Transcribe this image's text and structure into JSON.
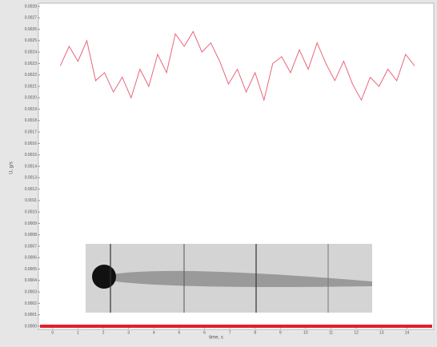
{
  "chart_data": {
    "type": "line",
    "x_label": "time, s",
    "y_label": "U, g/s",
    "x": [
      0.3,
      0.65,
      1,
      1.35,
      1.7,
      2.05,
      2.4,
      2.75,
      3.1,
      3.45,
      3.8,
      4.15,
      4.5,
      4.85,
      5.2,
      5.55,
      5.9,
      6.25,
      6.6,
      6.95,
      7.3,
      7.65,
      8,
      8.35,
      8.7,
      9.05,
      9.4,
      9.75,
      10.1,
      10.45,
      10.8,
      11.15,
      11.5,
      11.85,
      12.2,
      12.55,
      12.9,
      13.25,
      13.6,
      13.95,
      14.3
    ],
    "series": [
      {
        "color": "#e8667a",
        "values": [
          0.00228,
          0.00245,
          0.00232,
          0.0025,
          0.00215,
          0.00222,
          0.00205,
          0.00218,
          0.002,
          0.00225,
          0.0021,
          0.00238,
          0.00222,
          0.00256,
          0.00245,
          0.00258,
          0.0024,
          0.00248,
          0.00232,
          0.00212,
          0.00225,
          0.00205,
          0.00222,
          0.00198,
          0.0023,
          0.00236,
          0.00222,
          0.00242,
          0.00225,
          0.00248,
          0.0023,
          0.00215,
          0.00232,
          0.00212,
          0.00198,
          0.00218,
          0.0021,
          0.00225,
          0.00215,
          0.00238,
          0.00228
        ]
      }
    ],
    "xlim": [
      -0.5,
      15
    ],
    "xticks": [
      0,
      1,
      2,
      3,
      4,
      5,
      6,
      7,
      8,
      9,
      10,
      11,
      12,
      13,
      14
    ],
    "ylim": [
      0,
      0.0028
    ],
    "yticks": [
      {
        "value": 0,
        "label": "0.0000"
      },
      {
        "value": 0.0001,
        "label": "0.0001"
      },
      {
        "value": 0.0002,
        "label": "0.0002"
      },
      {
        "value": 0.0003,
        "label": "0.0003"
      },
      {
        "value": 0.0004,
        "label": "0.0004"
      },
      {
        "value": 0.0005,
        "label": "0.0005"
      },
      {
        "value": 0.0006,
        "label": "0.0006"
      },
      {
        "value": 0.0007,
        "label": "0.0007"
      },
      {
        "value": 0.0008,
        "label": "0.0008"
      },
      {
        "value": 0.0009,
        "label": "0.0009"
      },
      {
        "value": 0.001,
        "label": "0.0010"
      },
      {
        "value": 0.0011,
        "label": "0.0011"
      },
      {
        "value": 0.0012,
        "label": "0.0012"
      },
      {
        "value": 0.0013,
        "label": "0.0013"
      },
      {
        "value": 0.0014,
        "label": "0.0014"
      },
      {
        "value": 0.0015,
        "label": "0.0015"
      },
      {
        "value": 0.0016,
        "label": "0.0016"
      },
      {
        "value": 0.0017,
        "label": "0.0017"
      },
      {
        "value": 0.0018,
        "label": "0.0018"
      },
      {
        "value": 0.0019,
        "label": "0.0019"
      },
      {
        "value": 0.002,
        "label": "0.0020"
      },
      {
        "value": 0.0021,
        "label": "0.0021"
      },
      {
        "value": 0.0022,
        "label": "0.0022"
      },
      {
        "value": 0.0023,
        "label": "0.0023"
      },
      {
        "value": 0.0024,
        "label": "0.0024"
      },
      {
        "value": 0.0025,
        "label": "0.0025"
      },
      {
        "value": 0.0026,
        "label": "0.0026"
      },
      {
        "value": 0.0027,
        "label": "0.0027"
      },
      {
        "value": 0.0028,
        "label": "0.0028"
      }
    ],
    "axis_color": "#e0202a"
  }
}
